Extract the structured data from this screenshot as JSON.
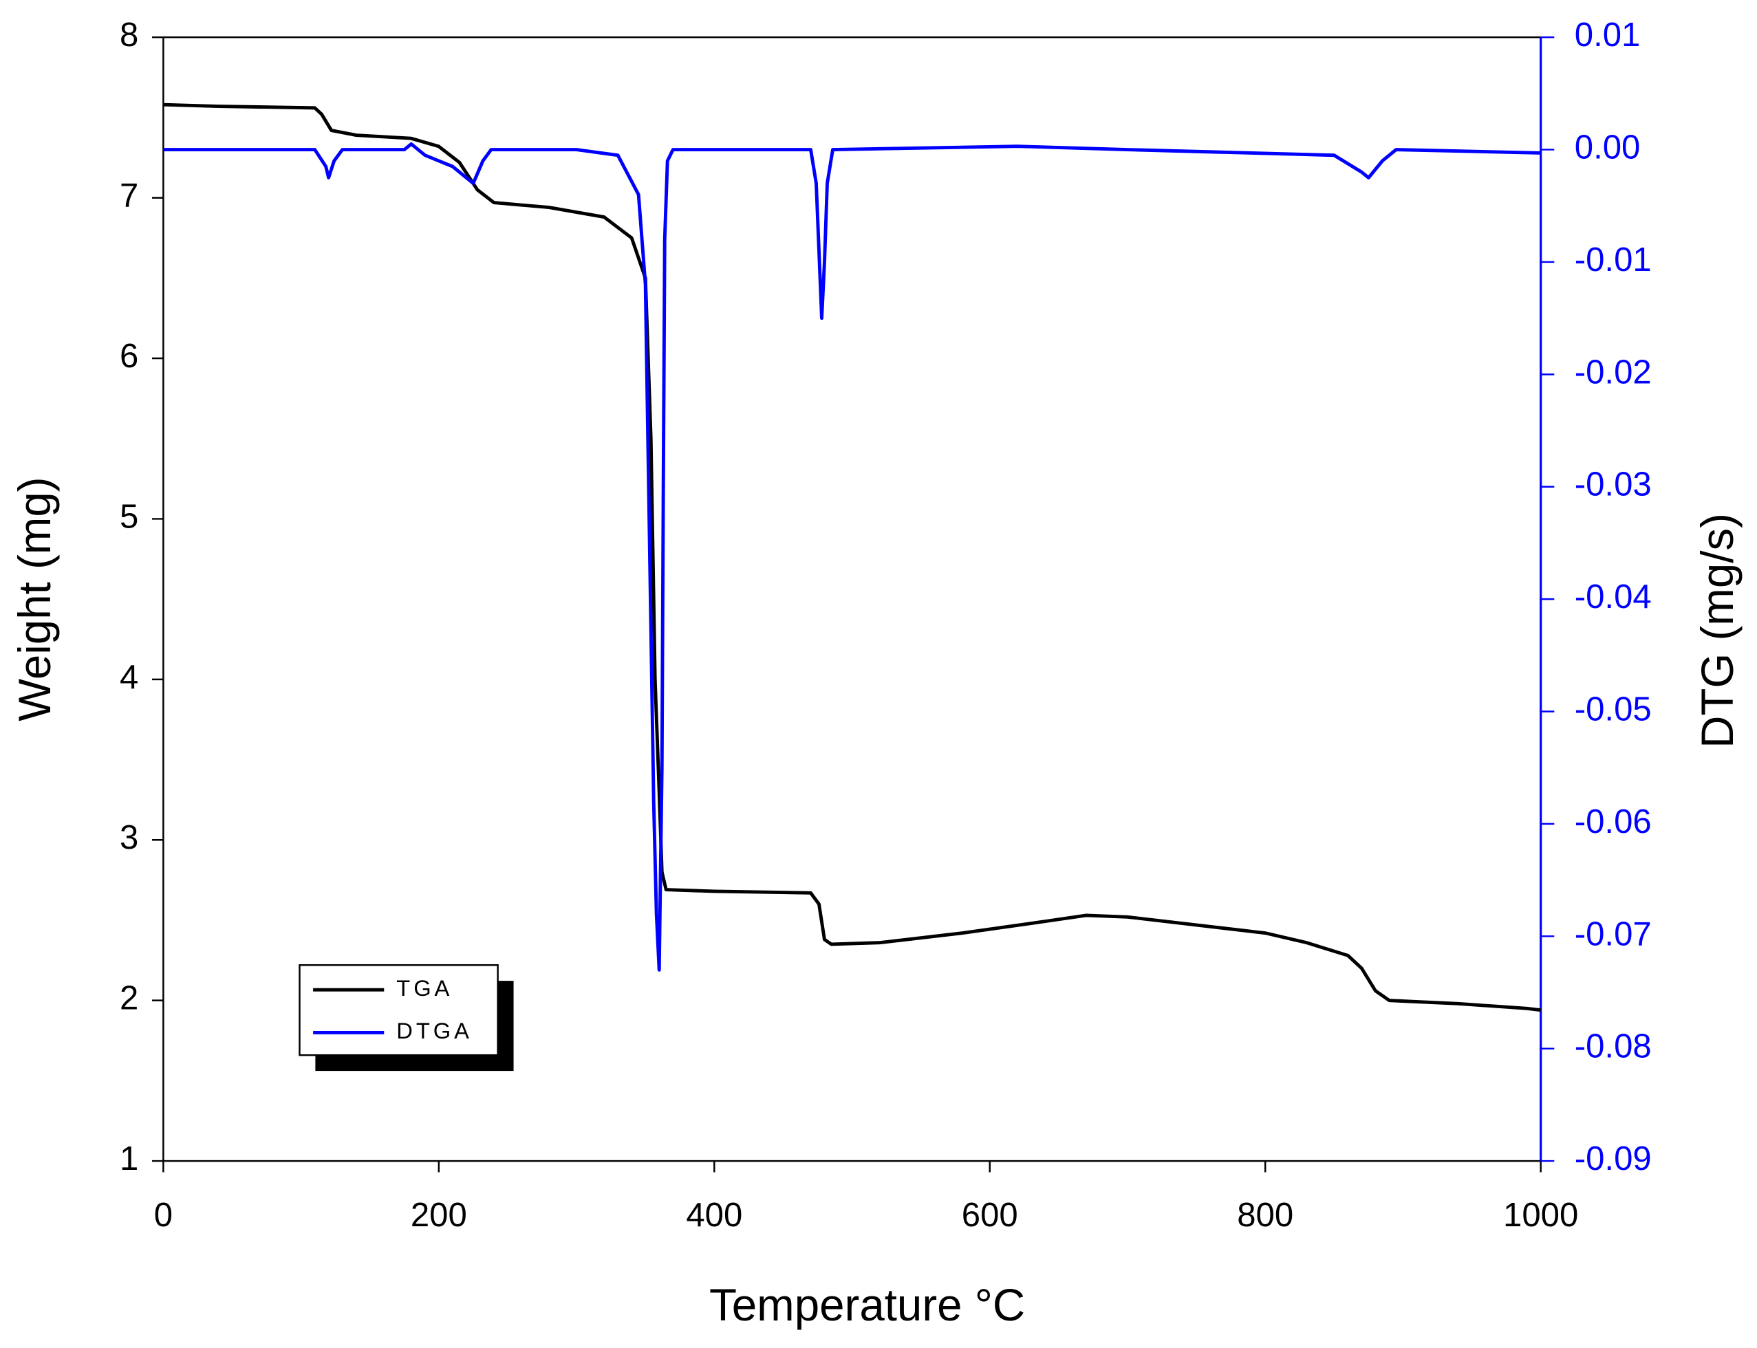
{
  "chart_data": {
    "type": "line",
    "xlabel": "Temperature °C",
    "ylabel": "Weight (mg)",
    "y2label": "DTG (mg/s)",
    "xlim": [
      0,
      1000
    ],
    "xticks": [
      0,
      200,
      400,
      600,
      800,
      1000
    ],
    "ylim": [
      1,
      8
    ],
    "yticks": [
      1,
      2,
      3,
      4,
      5,
      6,
      7,
      8
    ],
    "y2lim": [
      -0.09,
      0.01
    ],
    "y2ticks": [
      -0.09,
      -0.08,
      -0.07,
      -0.06,
      -0.05,
      -0.04,
      -0.03,
      -0.02,
      -0.01,
      {
        "value": 0,
        "label": "0.00"
      },
      0.01
    ],
    "legend": "lower-left",
    "series": [
      {
        "name": "TGA",
        "color": "#000000",
        "x": [
          0,
          40,
          110,
          115,
          122,
          140,
          180,
          200,
          215,
          228,
          240,
          280,
          320,
          340,
          350,
          354,
          357,
          360,
          362,
          365,
          400,
          470,
          476,
          480,
          485,
          520,
          580,
          630,
          670,
          700,
          760,
          800,
          830,
          860,
          870,
          880,
          890,
          940,
          990,
          1000
        ],
        "values": [
          7.58,
          7.57,
          7.56,
          7.52,
          7.42,
          7.39,
          7.37,
          7.32,
          7.22,
          7.05,
          6.97,
          6.94,
          6.88,
          6.75,
          6.5,
          5.5,
          4.0,
          3.3,
          2.8,
          2.69,
          2.68,
          2.67,
          2.6,
          2.38,
          2.35,
          2.36,
          2.42,
          2.48,
          2.53,
          2.52,
          2.46,
          2.42,
          2.36,
          2.28,
          2.2,
          2.06,
          2.0,
          1.98,
          1.95,
          1.94
        ]
      },
      {
        "name": "DTGA",
        "color": "#0000ff",
        "axis": "y2",
        "x": [
          0,
          110,
          118,
          120,
          124,
          130,
          175,
          180,
          190,
          210,
          225,
          232,
          238,
          300,
          330,
          345,
          350,
          353,
          356,
          358,
          360,
          362,
          363,
          364,
          366,
          370,
          470,
          474,
          477,
          478,
          480,
          482,
          486,
          620,
          700,
          850,
          870,
          875,
          885,
          895,
          1000
        ],
        "values": [
          0,
          0,
          -0.0015,
          -0.0025,
          -0.001,
          0,
          0,
          0.0005,
          -0.0005,
          -0.0015,
          -0.003,
          -0.001,
          0,
          0,
          -0.0005,
          -0.004,
          -0.012,
          -0.035,
          -0.058,
          -0.068,
          -0.073,
          -0.055,
          -0.03,
          -0.008,
          -0.001,
          0,
          0,
          -0.003,
          -0.012,
          -0.015,
          -0.01,
          -0.003,
          0,
          0.0003,
          0,
          -0.0005,
          -0.002,
          -0.0025,
          -0.001,
          0,
          -0.0003
        ]
      }
    ]
  }
}
